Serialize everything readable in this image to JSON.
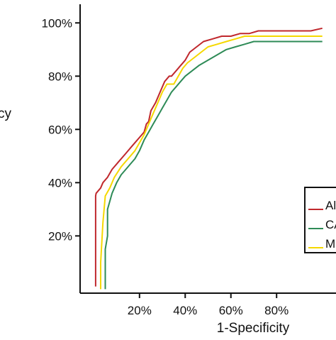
{
  "chart_data": {
    "type": "line",
    "title": "",
    "xlabel": "1-Specificity",
    "ylabel": "cy",
    "xlim": [
      -0.06,
      1.06
    ],
    "ylim": [
      -0.015,
      1.07
    ],
    "x_ticks": [
      {
        "value": 0.2,
        "label": "20%"
      },
      {
        "value": 0.4,
        "label": "40%"
      },
      {
        "value": 0.6,
        "label": "60%"
      },
      {
        "value": 0.8,
        "label": "80%"
      }
    ],
    "y_ticks": [
      {
        "value": 0.2,
        "label": "20%"
      },
      {
        "value": 0.4,
        "label": "40%"
      },
      {
        "value": 0.6,
        "label": "60%"
      },
      {
        "value": 0.8,
        "label": "80%"
      },
      {
        "value": 1.0,
        "label": "100%"
      }
    ],
    "grid": false,
    "legend": {
      "placement": "right",
      "entries": [
        "Al",
        "CA",
        "M"
      ]
    },
    "series": [
      {
        "name": "Al",
        "color": "#c0282d",
        "x": [
          0.008,
          0.008,
          0.01,
          0.03,
          0.04,
          0.06,
          0.08,
          0.11,
          0.14,
          0.17,
          0.2,
          0.22,
          0.23,
          0.24,
          0.25,
          0.27,
          0.29,
          0.31,
          0.33,
          0.34,
          0.36,
          0.38,
          0.4,
          0.42,
          0.45,
          0.48,
          0.52,
          0.56,
          0.6,
          0.64,
          0.68,
          0.72,
          0.76,
          0.8,
          0.85,
          0.9,
          0.95,
          1.0
        ],
        "y": [
          0.01,
          0.35,
          0.36,
          0.38,
          0.4,
          0.42,
          0.45,
          0.48,
          0.51,
          0.54,
          0.57,
          0.59,
          0.62,
          0.63,
          0.67,
          0.7,
          0.74,
          0.78,
          0.8,
          0.8,
          0.82,
          0.84,
          0.86,
          0.89,
          0.91,
          0.93,
          0.94,
          0.95,
          0.95,
          0.96,
          0.96,
          0.97,
          0.97,
          0.97,
          0.97,
          0.97,
          0.97,
          0.98
        ]
      },
      {
        "name": "CA",
        "color": "#2e8b57",
        "x": [
          0.05,
          0.05,
          0.06,
          0.06,
          0.07,
          0.08,
          0.1,
          0.12,
          0.14,
          0.16,
          0.18,
          0.2,
          0.22,
          0.24,
          0.26,
          0.28,
          0.3,
          0.32,
          0.34,
          0.36,
          0.38,
          0.4,
          0.43,
          0.46,
          0.5,
          0.54,
          0.58,
          0.62,
          0.66,
          0.7,
          0.76,
          0.82,
          0.88,
          0.94,
          1.0
        ],
        "y": [
          0.0,
          0.15,
          0.2,
          0.3,
          0.33,
          0.36,
          0.4,
          0.43,
          0.45,
          0.47,
          0.49,
          0.52,
          0.56,
          0.59,
          0.62,
          0.65,
          0.68,
          0.71,
          0.74,
          0.76,
          0.78,
          0.8,
          0.82,
          0.84,
          0.86,
          0.88,
          0.9,
          0.91,
          0.92,
          0.93,
          0.93,
          0.93,
          0.93,
          0.93,
          0.93
        ]
      },
      {
        "name": "M",
        "color": "#f5d800",
        "x": [
          0.03,
          0.03,
          0.04,
          0.05,
          0.07,
          0.09,
          0.12,
          0.15,
          0.18,
          0.2,
          0.22,
          0.24,
          0.26,
          0.28,
          0.3,
          0.32,
          0.34,
          0.35,
          0.37,
          0.39,
          0.41,
          0.44,
          0.47,
          0.5,
          0.54,
          0.58,
          0.62,
          0.66,
          0.7,
          0.75,
          0.8,
          0.86,
          0.92,
          1.0
        ],
        "y": [
          0.0,
          0.1,
          0.25,
          0.35,
          0.38,
          0.42,
          0.46,
          0.49,
          0.52,
          0.55,
          0.58,
          0.62,
          0.66,
          0.7,
          0.74,
          0.77,
          0.77,
          0.77,
          0.8,
          0.83,
          0.85,
          0.87,
          0.89,
          0.91,
          0.92,
          0.93,
          0.94,
          0.95,
          0.95,
          0.95,
          0.95,
          0.95,
          0.95,
          0.95
        ]
      }
    ]
  }
}
